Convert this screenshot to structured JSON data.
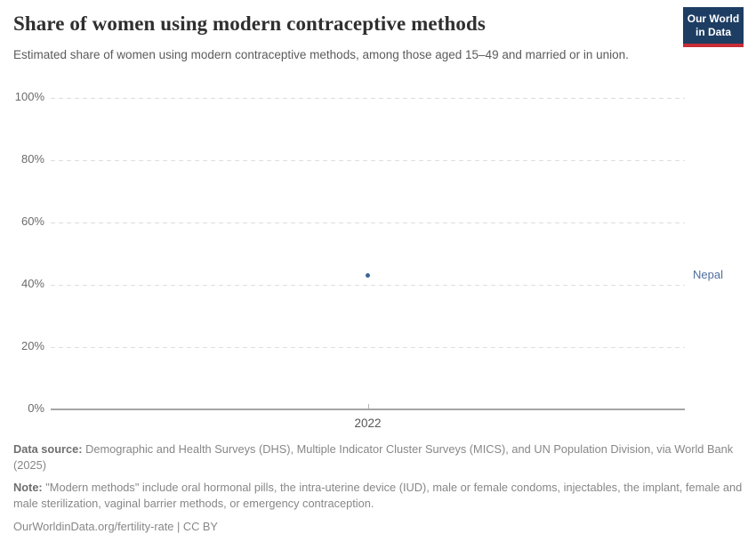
{
  "header": {
    "title": "Share of women using modern contraceptive methods",
    "subtitle": "Estimated share of women using modern contraceptive methods, among those aged 15–49 and married or in union.",
    "logo": {
      "line1": "Our World",
      "line2": "in Data",
      "background_color": "#1d3d63",
      "bar_color": "#c82d37"
    }
  },
  "chart_data": {
    "type": "scatter",
    "title": "Share of women using modern contraceptive methods",
    "x": [
      2022
    ],
    "series": [
      {
        "name": "Nepal",
        "values": [
          43
        ]
      }
    ],
    "xlabel": "",
    "ylabel": "",
    "ylim": [
      0,
      100
    ],
    "yticks": [
      0,
      20,
      40,
      60,
      80,
      100
    ],
    "ytick_labels": [
      "0%",
      "20%",
      "40%",
      "60%",
      "80%",
      "100%"
    ],
    "xtick_labels": [
      "2022"
    ],
    "grid": "horizontal-dashed",
    "legend_position": "right-entity-label",
    "point_color": "#3e6599",
    "entity_label_color": "#516d9e"
  },
  "footer": {
    "datasource_label": "Data source:",
    "datasource_text": " Demographic and Health Surveys (DHS), Multiple Indicator Cluster Surveys (MICS), and UN Population Division, via World Bank (2025)",
    "note_label": "Note:",
    "note_text": " \"Modern methods\" include oral hormonal pills, the intra-uterine device (IUD), male or female condoms, injectables, the implant, female and male sterilization, vaginal barrier methods, or emergency contraception.",
    "license": "OurWorldinData.org/fertility-rate | CC BY"
  }
}
